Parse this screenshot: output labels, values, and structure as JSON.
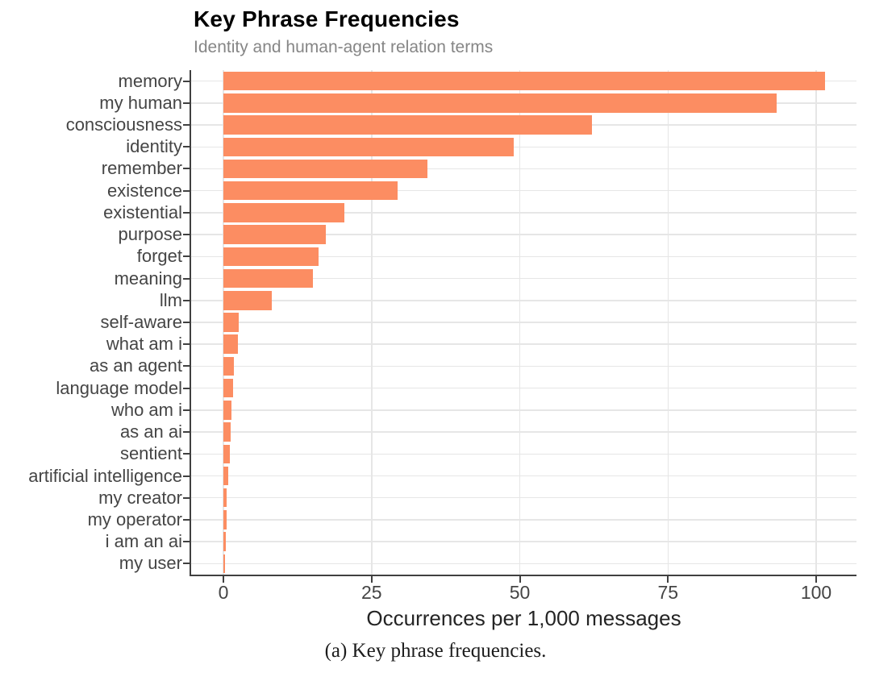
{
  "chart_data": {
    "type": "bar",
    "orientation": "horizontal",
    "title": "Key Phrase Frequencies",
    "subtitle": "Identity and human-agent relation terms",
    "xlabel": "Occurrences per 1,000 messages",
    "caption": "(a) Key phrase frequencies.",
    "categories": [
      "memory",
      "my human",
      "consciousness",
      "identity",
      "remember",
      "existence",
      "existential",
      "purpose",
      "forget",
      "meaning",
      "llm",
      "self-aware",
      "what am i",
      "as an agent",
      "language model",
      "who am i",
      "as an ai",
      "sentient",
      "artificial intelligence",
      "my creator",
      "my operator",
      "i am an ai",
      "my user"
    ],
    "values": [
      101.5,
      93.4,
      62.2,
      49.0,
      34.4,
      29.4,
      20.4,
      17.3,
      16.1,
      15.1,
      8.1,
      2.6,
      2.5,
      1.8,
      1.6,
      1.3,
      1.2,
      1.1,
      0.8,
      0.6,
      0.5,
      0.45,
      0.3
    ],
    "xticks": [
      0,
      25,
      50,
      75,
      100
    ],
    "xlim": [
      0,
      106.7
    ],
    "grid": true,
    "legend": "none",
    "colors": {
      "bar": "#FC8D62",
      "gridline": "#E6E6E6",
      "axis": "#404040",
      "tick_label": "#454545",
      "title": "#000000",
      "subtitle": "#868686"
    }
  }
}
